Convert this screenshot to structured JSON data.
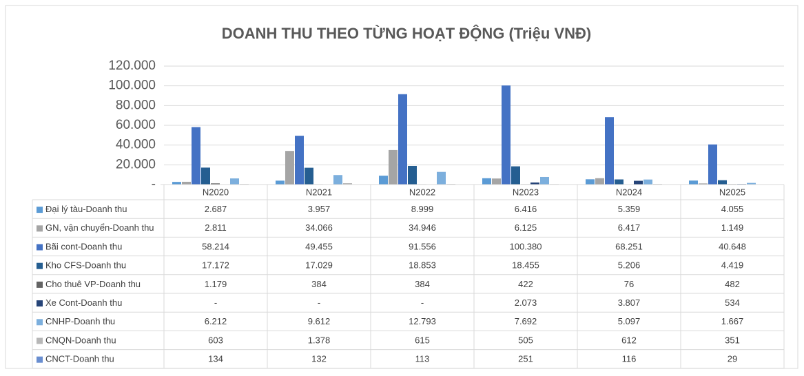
{
  "chart_data": {
    "type": "bar",
    "title": "DOANH THU THEO TỪNG HOẠT ĐỘNG (Triệu VNĐ)",
    "categories": [
      "N2020",
      "N2021",
      "N2022",
      "N2023",
      "N2024",
      "N2025"
    ],
    "ylim": [
      0,
      120000
    ],
    "yticks": [
      {
        "value": 0,
        "label": "-"
      },
      {
        "value": 20000,
        "label": "20.000"
      },
      {
        "value": 40000,
        "label": "40.000"
      },
      {
        "value": 60000,
        "label": "60.000"
      },
      {
        "value": 80000,
        "label": "80.000"
      },
      {
        "value": 100000,
        "label": "100.000"
      },
      {
        "value": 120000,
        "label": "120.000"
      }
    ],
    "series": [
      {
        "name": "Đại lý tàu-Doanh thu",
        "color": "#5b9bd5",
        "values": [
          2687,
          3957,
          8999,
          6416,
          5359,
          4055
        ],
        "value_labels": [
          "2.687",
          "3.957",
          "8.999",
          "6.416",
          "5.359",
          "4.055"
        ]
      },
      {
        "name": "GN, vận chuyển-Doanh thu",
        "color": "#a5a5a5",
        "values": [
          2811,
          34066,
          34946,
          6125,
          6417,
          1149
        ],
        "value_labels": [
          "2.811",
          "34.066",
          "34.946",
          "6.125",
          "6.417",
          "1.149"
        ]
      },
      {
        "name": "Bãi cont-Doanh thu",
        "color": "#4472c4",
        "values": [
          58214,
          49455,
          91556,
          100380,
          68251,
          40648
        ],
        "value_labels": [
          "58.214",
          "49.455",
          "91.556",
          "100.380",
          "68.251",
          "40.648"
        ]
      },
      {
        "name": "Kho CFS-Doanh thu",
        "color": "#255e91",
        "values": [
          17172,
          17029,
          18853,
          18455,
          5206,
          4419
        ],
        "value_labels": [
          "17.172",
          "17.029",
          "18.853",
          "18.455",
          "5.206",
          "4.419"
        ]
      },
      {
        "name": "Cho thuê VP-Doanh thu",
        "color": "#636363",
        "values": [
          1179,
          384,
          384,
          422,
          76,
          482
        ],
        "value_labels": [
          "1.179",
          "384",
          "384",
          "422",
          "76",
          "482"
        ]
      },
      {
        "name": "Xe Cont-Doanh thu",
        "color": "#264478",
        "values": [
          0,
          0,
          0,
          2073,
          3807,
          534
        ],
        "value_labels": [
          "-",
          "-",
          "-",
          "2.073",
          "3.807",
          "534"
        ]
      },
      {
        "name": "CNHP-Doanh thu",
        "color": "#7cafdd",
        "values": [
          6212,
          9612,
          12793,
          7692,
          5097,
          1667
        ],
        "value_labels": [
          "6.212",
          "9.612",
          "12.793",
          "7.692",
          "5.097",
          "1.667"
        ]
      },
      {
        "name": "CNQN-Doanh thu",
        "color": "#b7b7b7",
        "values": [
          603,
          1378,
          615,
          505,
          612,
          351
        ],
        "value_labels": [
          "603",
          "1.378",
          "615",
          "505",
          "612",
          "351"
        ]
      },
      {
        "name": "CNCT-Doanh thu",
        "color": "#698ed0",
        "values": [
          134,
          132,
          113,
          251,
          116,
          29
        ],
        "value_labels": [
          "134",
          "132",
          "113",
          "251",
          "116",
          "29"
        ]
      }
    ]
  }
}
